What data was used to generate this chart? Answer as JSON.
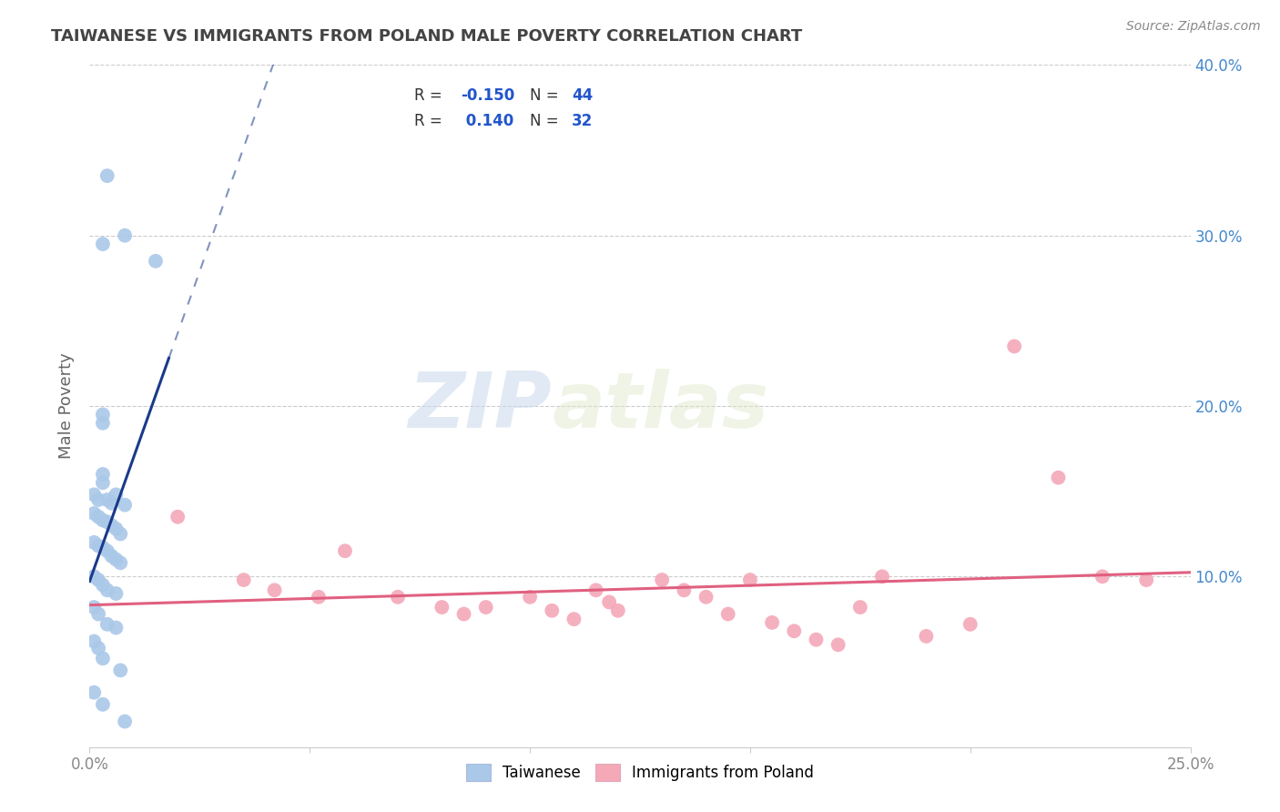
{
  "title": "TAIWANESE VS IMMIGRANTS FROM POLAND MALE POVERTY CORRELATION CHART",
  "source": "Source: ZipAtlas.com",
  "ylabel": "Male Poverty",
  "xlim": [
    0.0,
    0.25
  ],
  "ylim": [
    0.0,
    0.4
  ],
  "R_taiwanese": -0.15,
  "N_taiwanese": 44,
  "R_poland": 0.14,
  "N_poland": 32,
  "taiwanese_color": "#aac8e8",
  "poland_color": "#f4a8b8",
  "taiwanese_line_color": "#1a3a8a",
  "poland_line_color": "#e06080",
  "taiwanese_scatter": [
    [
      0.004,
      0.335
    ],
    [
      0.003,
      0.295
    ],
    [
      0.015,
      0.285
    ],
    [
      0.008,
      0.3
    ],
    [
      0.003,
      0.195
    ],
    [
      0.003,
      0.19
    ],
    [
      0.003,
      0.16
    ],
    [
      0.003,
      0.155
    ],
    [
      0.001,
      0.148
    ],
    [
      0.002,
      0.145
    ],
    [
      0.004,
      0.145
    ],
    [
      0.005,
      0.143
    ],
    [
      0.006,
      0.148
    ],
    [
      0.008,
      0.142
    ],
    [
      0.001,
      0.137
    ],
    [
      0.002,
      0.135
    ],
    [
      0.003,
      0.133
    ],
    [
      0.004,
      0.132
    ],
    [
      0.005,
      0.13
    ],
    [
      0.006,
      0.128
    ],
    [
      0.007,
      0.125
    ],
    [
      0.001,
      0.12
    ],
    [
      0.002,
      0.118
    ],
    [
      0.003,
      0.117
    ],
    [
      0.004,
      0.115
    ],
    [
      0.005,
      0.112
    ],
    [
      0.006,
      0.11
    ],
    [
      0.007,
      0.108
    ],
    [
      0.001,
      0.1
    ],
    [
      0.002,
      0.098
    ],
    [
      0.003,
      0.095
    ],
    [
      0.004,
      0.092
    ],
    [
      0.006,
      0.09
    ],
    [
      0.001,
      0.082
    ],
    [
      0.002,
      0.078
    ],
    [
      0.004,
      0.072
    ],
    [
      0.006,
      0.07
    ],
    [
      0.001,
      0.062
    ],
    [
      0.002,
      0.058
    ],
    [
      0.003,
      0.052
    ],
    [
      0.007,
      0.045
    ],
    [
      0.001,
      0.032
    ],
    [
      0.003,
      0.025
    ],
    [
      0.008,
      0.015
    ]
  ],
  "poland_scatter": [
    [
      0.02,
      0.135
    ],
    [
      0.035,
      0.098
    ],
    [
      0.042,
      0.092
    ],
    [
      0.052,
      0.088
    ],
    [
      0.058,
      0.115
    ],
    [
      0.07,
      0.088
    ],
    [
      0.08,
      0.082
    ],
    [
      0.085,
      0.078
    ],
    [
      0.09,
      0.082
    ],
    [
      0.1,
      0.088
    ],
    [
      0.105,
      0.08
    ],
    [
      0.11,
      0.075
    ],
    [
      0.115,
      0.092
    ],
    [
      0.118,
      0.085
    ],
    [
      0.12,
      0.08
    ],
    [
      0.13,
      0.098
    ],
    [
      0.135,
      0.092
    ],
    [
      0.14,
      0.088
    ],
    [
      0.145,
      0.078
    ],
    [
      0.15,
      0.098
    ],
    [
      0.155,
      0.073
    ],
    [
      0.16,
      0.068
    ],
    [
      0.165,
      0.063
    ],
    [
      0.17,
      0.06
    ],
    [
      0.175,
      0.082
    ],
    [
      0.18,
      0.1
    ],
    [
      0.19,
      0.065
    ],
    [
      0.2,
      0.072
    ],
    [
      0.21,
      0.235
    ],
    [
      0.22,
      0.158
    ],
    [
      0.23,
      0.1
    ],
    [
      0.24,
      0.098
    ]
  ],
  "background_color": "#ffffff",
  "grid_color": "#cccccc",
  "title_color": "#444444",
  "watermark_color": "#dde6f0",
  "legend_color": "#2255cc"
}
